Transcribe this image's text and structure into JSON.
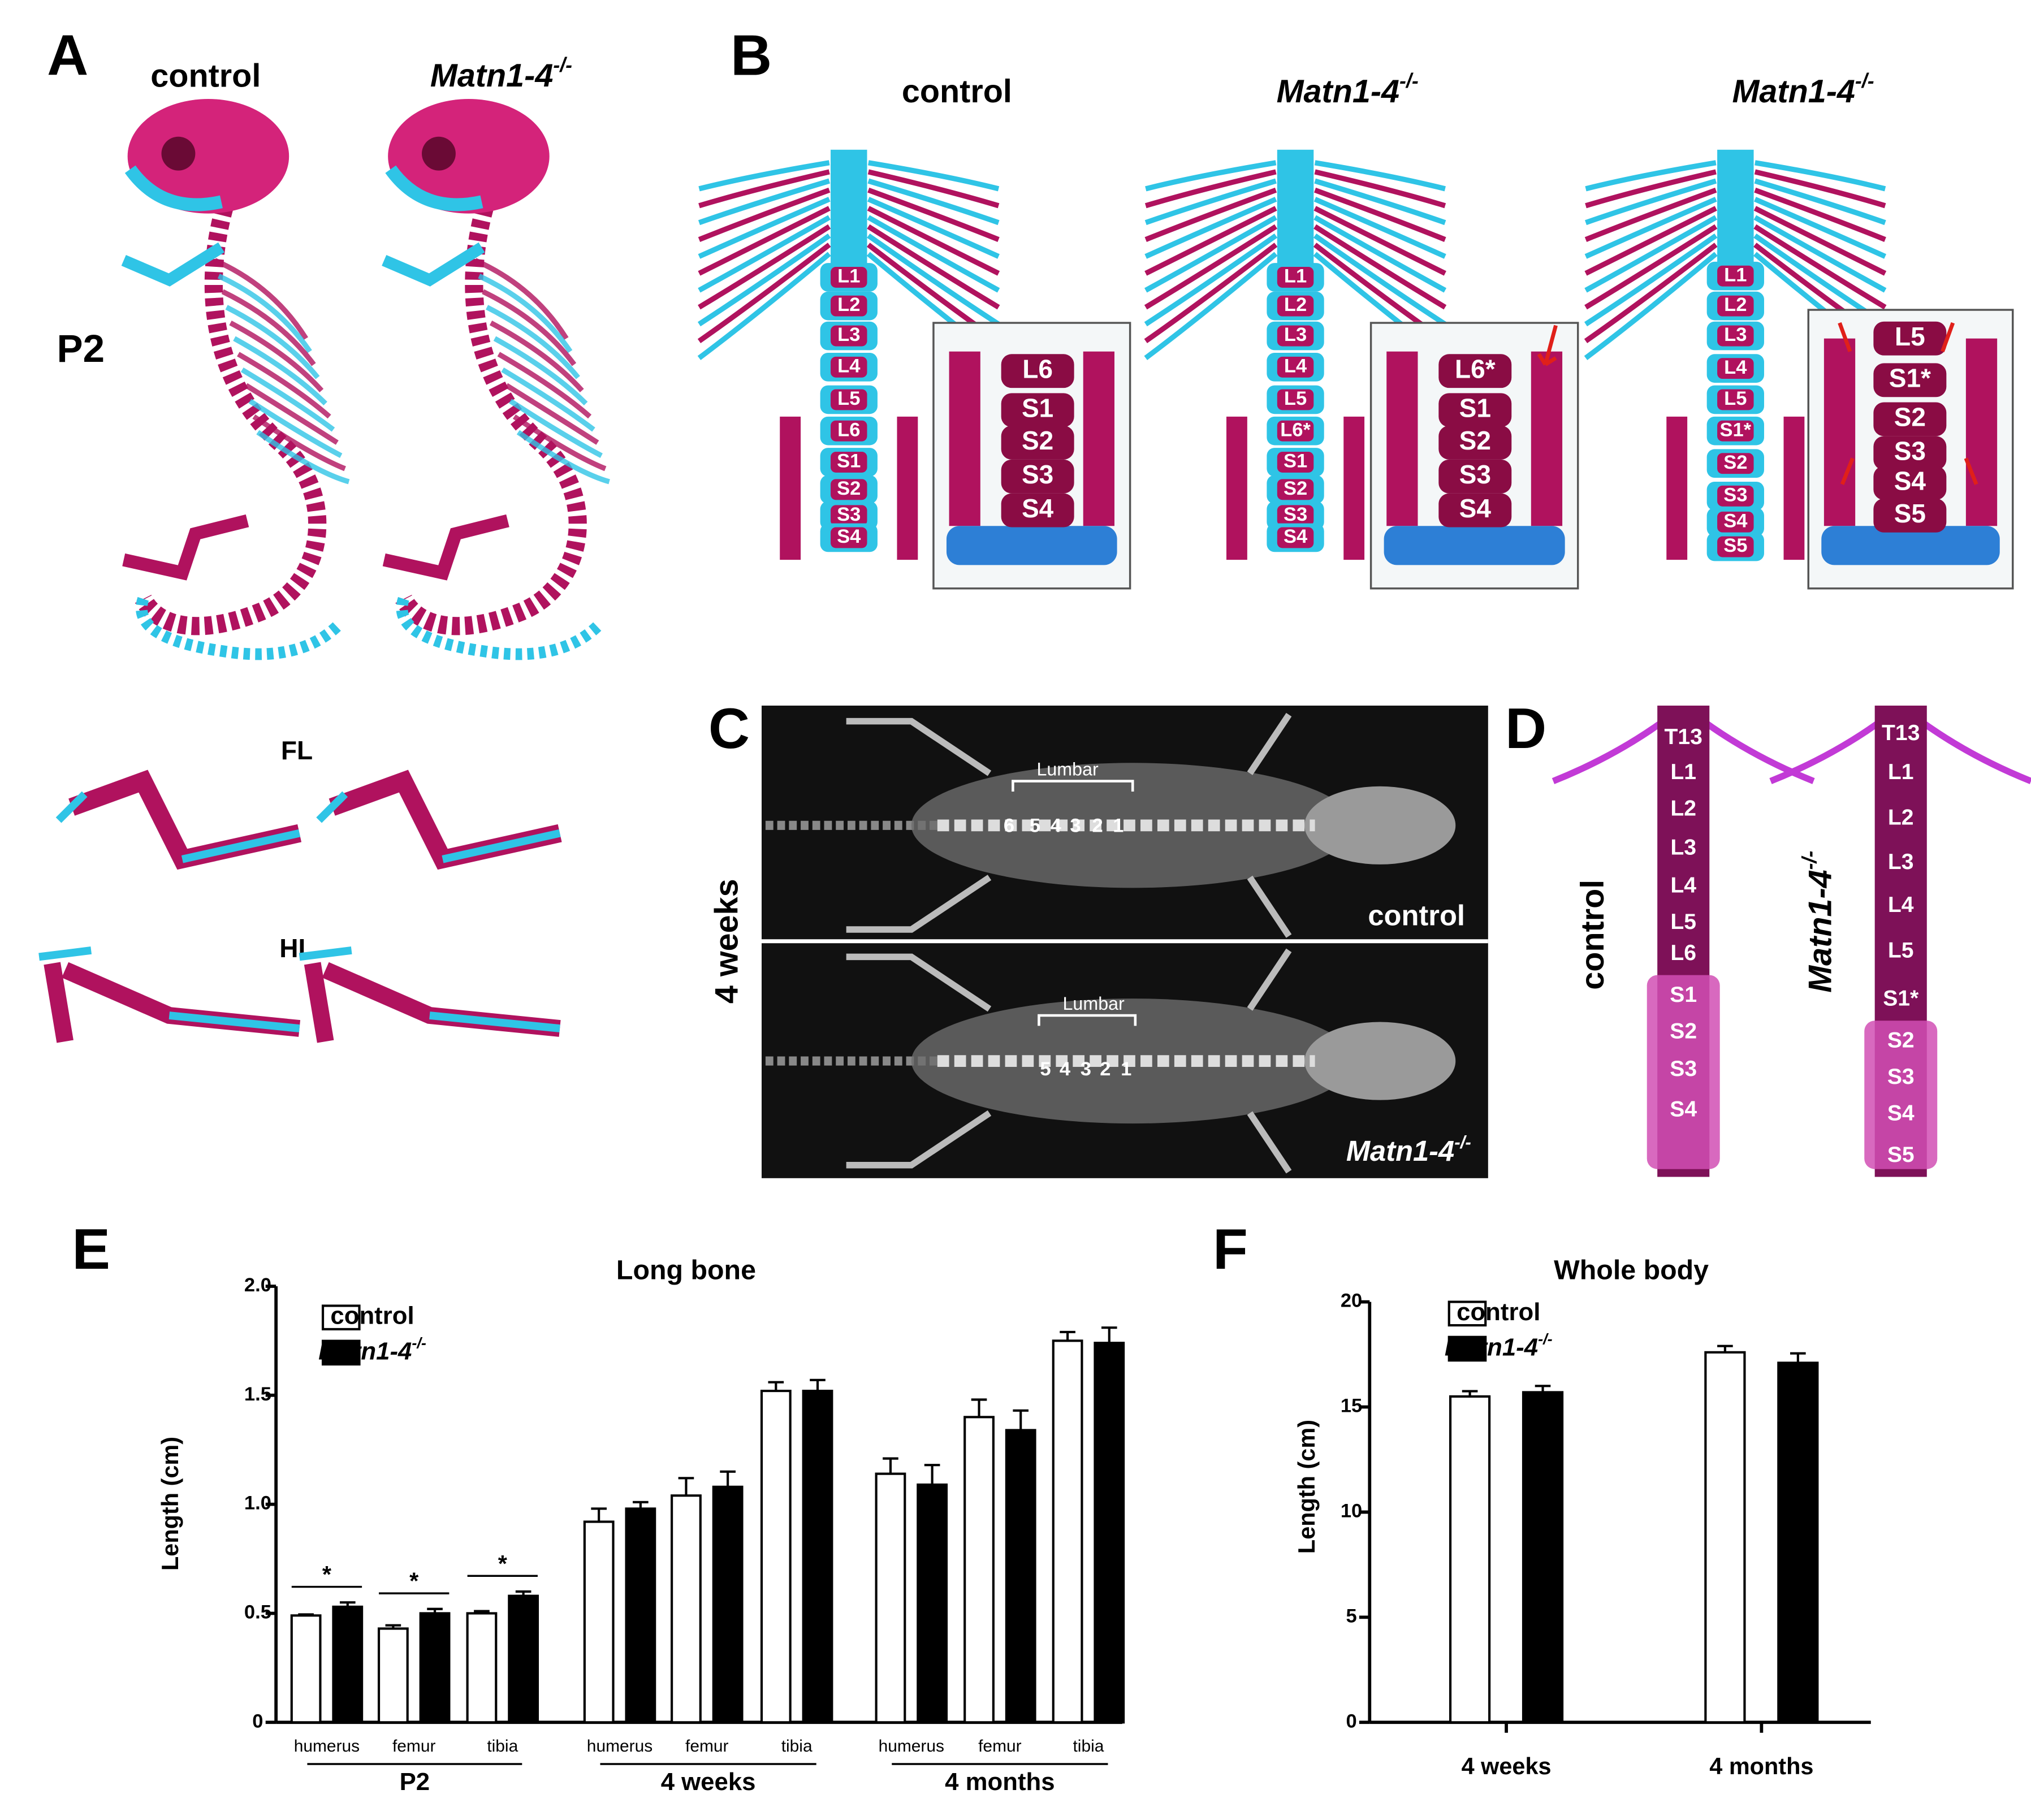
{
  "panel_a": {
    "letter": "A",
    "genotypes": [
      "control",
      "Matn1-4-/-"
    ],
    "age": "P2",
    "limbs": [
      "FL",
      "HL"
    ]
  },
  "panel_b": {
    "letter": "B",
    "columns": [
      {
        "genotype": "control",
        "spine": [
          "L1",
          "L2",
          "L3",
          "L4",
          "L5",
          "L6",
          "S1",
          "S2",
          "S3",
          "S4"
        ],
        "inset": [
          "L6",
          "S1",
          "S2",
          "S3",
          "S4"
        ]
      },
      {
        "genotype": "Matn1-4-/-",
        "spine": [
          "L1",
          "L2",
          "L3",
          "L4",
          "L5",
          "L6*",
          "S1",
          "S2",
          "S3",
          "S4"
        ],
        "inset": [
          "L6*",
          "S1",
          "S2",
          "S3",
          "S4"
        ]
      },
      {
        "genotype": "Matn1-4-/-",
        "spine": [
          "L1",
          "L2",
          "L3",
          "L4",
          "L5",
          "S1*",
          "S2",
          "S3",
          "S4",
          "S5"
        ],
        "inset": [
          "L5",
          "S1*",
          "S2",
          "S3",
          "S4",
          "S5"
        ]
      }
    ]
  },
  "panel_c": {
    "letter": "C",
    "age": "4 weeks",
    "images": [
      {
        "genotype": "control",
        "region": "Lumbar",
        "vertebrae": [
          "6",
          "5",
          "4",
          "3",
          "2",
          "1"
        ]
      },
      {
        "genotype": "Matn1-4-/-",
        "region": "Lumbar",
        "vertebrae": [
          "5",
          "4",
          "3",
          "2",
          "1"
        ]
      }
    ]
  },
  "panel_d": {
    "letter": "D",
    "columns": [
      {
        "genotype": "control",
        "vertebrae": [
          "T13",
          "L1",
          "L2",
          "L3",
          "L4",
          "L5",
          "L6",
          "S1",
          "S2",
          "S3",
          "S4"
        ]
      },
      {
        "genotype": "Matn1-4-/-",
        "vertebrae": [
          "T13",
          "L1",
          "L2",
          "L3",
          "L4",
          "L5",
          "S1*",
          "S2",
          "S3",
          "S4",
          "S5"
        ]
      }
    ]
  },
  "chart_data": [
    {
      "type": "bar",
      "panel": "E",
      "title": "Long bone",
      "y_label": "Length (cm)",
      "categories": [
        "humerus",
        "femur",
        "tibia",
        "humerus",
        "femur",
        "tibia",
        "humerus",
        "femur",
        "tibia"
      ],
      "groups": [
        "P2",
        "4 weeks",
        "4 months"
      ],
      "significance": [
        "*",
        "*",
        "*",
        null,
        null,
        null,
        null,
        null,
        null
      ],
      "series": [
        {
          "name": "control",
          "color": "#ffffff",
          "values": [
            0.49,
            0.43,
            0.5,
            0.92,
            1.04,
            1.52,
            1.14,
            1.4,
            1.75
          ],
          "errors": [
            0.005,
            0.015,
            0.01,
            0.06,
            0.08,
            0.04,
            0.07,
            0.08,
            0.04
          ]
        },
        {
          "name": "Matn1-4-/-",
          "color": "#000000",
          "values": [
            0.53,
            0.5,
            0.58,
            0.98,
            1.08,
            1.52,
            1.09,
            1.34,
            1.74
          ],
          "errors": [
            0.02,
            0.02,
            0.02,
            0.03,
            0.07,
            0.05,
            0.09,
            0.09,
            0.07
          ]
        }
      ],
      "ylim": [
        0,
        2
      ],
      "yticks": [
        0,
        0.5,
        {
          "value": 1,
          "label": "1.0"
        },
        1.5,
        {
          "value": 2,
          "label": "2.0"
        }
      ]
    },
    {
      "type": "bar",
      "panel": "F",
      "title": "Whole body",
      "y_label": "Length (cm)",
      "categories": [
        "4 weeks",
        "4 months"
      ],
      "series": [
        {
          "name": "control",
          "color": "#ffffff",
          "values": [
            15.5,
            17.6
          ],
          "errors": [
            0.25,
            0.3
          ]
        },
        {
          "name": "Matn1-4-/-",
          "color": "#000000",
          "values": [
            15.7,
            17.1
          ],
          "errors": [
            0.3,
            0.45
          ]
        }
      ],
      "ylim": [
        0,
        20
      ],
      "yticks": [
        0,
        5,
        10,
        15,
        20
      ]
    }
  ]
}
